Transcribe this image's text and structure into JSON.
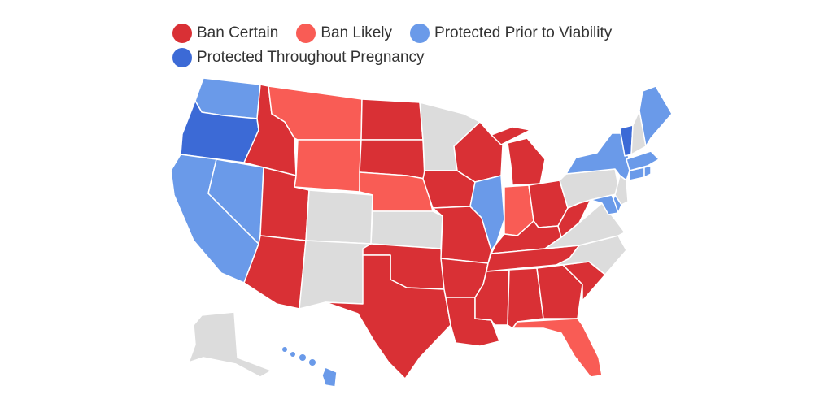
{
  "legend": {
    "items": [
      {
        "label": "Ban Certain",
        "color": "#d93035"
      },
      {
        "label": "Ban Likely",
        "color": "#f95c55"
      },
      {
        "label": "Protected Prior to Viability",
        "color": "#6a9ae9"
      },
      {
        "label": "Protected Throughout Pregnancy",
        "color": "#3c6ad6"
      }
    ]
  },
  "colors": {
    "ban_certain": "#d93035",
    "ban_likely": "#f95c55",
    "protected_prior": "#6a9ae9",
    "protected_throughout": "#3c6ad6",
    "no_category": "#dcdcdc"
  },
  "states": {
    "WA": "protected_prior",
    "OR": "protected_throughout",
    "CA": "protected_prior",
    "NV": "protected_prior",
    "ID": "ban_certain",
    "MT": "ban_likely",
    "WY": "ban_likely",
    "UT": "ban_certain",
    "AZ": "ban_certain",
    "CO": "no_category",
    "NM": "no_category",
    "ND": "ban_certain",
    "SD": "ban_certain",
    "NE": "ban_likely",
    "KS": "no_category",
    "OK": "ban_certain",
    "TX": "ban_certain",
    "MN": "no_category",
    "IA": "ban_certain",
    "MO": "ban_certain",
    "AR": "ban_certain",
    "LA": "ban_certain",
    "WI": "ban_certain",
    "IL": "protected_prior",
    "MI": "ban_certain",
    "IN": "ban_likely",
    "OH": "ban_certain",
    "KY": "ban_certain",
    "TN": "ban_certain",
    "MS": "ban_certain",
    "AL": "ban_certain",
    "GA": "ban_certain",
    "FL": "ban_likely",
    "SC": "ban_certain",
    "NC": "no_category",
    "VA": "no_category",
    "WV": "ban_certain",
    "PA": "no_category",
    "NY": "protected_prior",
    "VT": "protected_throughout",
    "NH": "no_category",
    "ME": "protected_prior",
    "MA": "protected_prior",
    "CT": "protected_prior",
    "RI": "protected_prior",
    "NJ": "no_category",
    "DE": "protected_prior",
    "MD": "protected_prior",
    "AK": "no_category",
    "HI": "protected_prior"
  }
}
